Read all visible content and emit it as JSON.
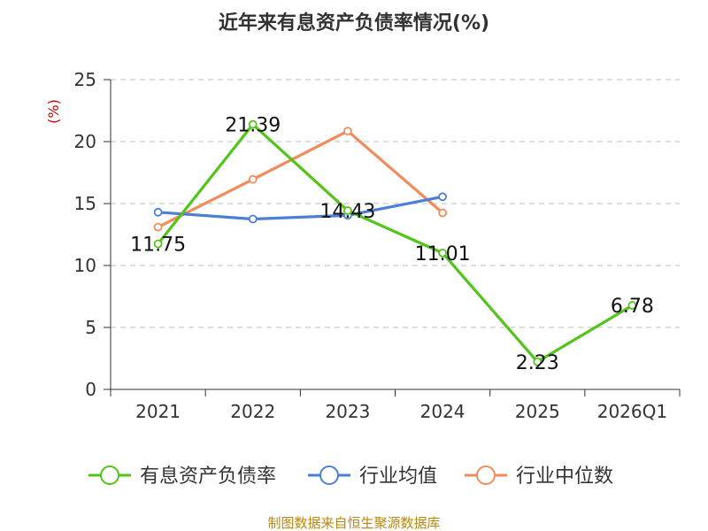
{
  "chart_data": {
    "type": "line",
    "title": "近年来有息资产负债率情况(%)",
    "unit_label": "(%)",
    "categories": [
      "2021",
      "2022",
      "2023",
      "2024",
      "2025",
      "2026Q1"
    ],
    "ylim": [
      0,
      25
    ],
    "yticks": [
      0,
      5,
      10,
      15,
      20,
      25
    ],
    "grid": true,
    "legend_position": "bottom",
    "series": [
      {
        "name": "有息资产负债率",
        "color": "#52c41a",
        "values": [
          11.75,
          21.39,
          14.43,
          11.01,
          2.23,
          6.78
        ],
        "labels": [
          "11.75",
          "21.39",
          "14.43",
          "11.01",
          "2.23",
          "6.78"
        ]
      },
      {
        "name": "行业均值",
        "color": "#4e7fd6",
        "values": [
          14.3,
          13.75,
          14.05,
          15.55,
          null,
          null
        ]
      },
      {
        "name": "行业中位数",
        "color": "#f28c5c",
        "values": [
          13.1,
          16.95,
          20.85,
          14.25,
          null,
          null
        ]
      }
    ]
  },
  "footer": {
    "source": "制图数据来自恒生聚源数据库"
  }
}
